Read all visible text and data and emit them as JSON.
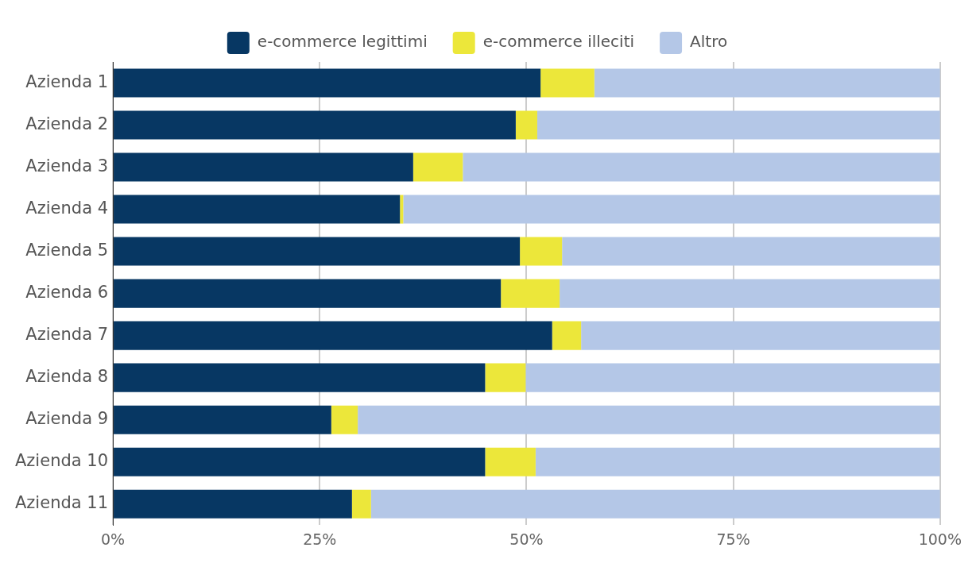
{
  "chart_data": {
    "type": "bar",
    "orientation": "horizontal",
    "stacked": true,
    "categories": [
      "Azienda 1",
      "Azienda 2",
      "Azienda 3",
      "Azienda 4",
      "Azienda 5",
      "Azienda 6",
      "Azienda 7",
      "Azienda 8",
      "Azienda 9",
      "Azienda 10",
      "Azienda 11"
    ],
    "series": [
      {
        "name": "e-commerce legittimi",
        "color": "#073763",
        "values": [
          51.7,
          48.7,
          36.3,
          34.7,
          49.2,
          46.9,
          53.1,
          45.0,
          26.4,
          45.0,
          28.9
        ]
      },
      {
        "name": "e-commerce illeciti",
        "color": "#ece73a",
        "values": [
          6.5,
          2.6,
          6.0,
          0.4,
          5.1,
          7.1,
          3.5,
          4.9,
          3.2,
          6.1,
          2.3
        ]
      },
      {
        "name": "Altro",
        "color": "#b4c7e7",
        "values": [
          41.8,
          48.7,
          57.7,
          64.9,
          45.7,
          46.0,
          43.4,
          50.1,
          70.4,
          48.9,
          68.8
        ]
      }
    ],
    "xlim": [
      0,
      100
    ],
    "xticks": [
      {
        "value": 0,
        "label": "0%"
      },
      {
        "value": 25,
        "label": "25%"
      },
      {
        "value": 50,
        "label": "50%"
      },
      {
        "value": 75,
        "label": "75%"
      },
      {
        "value": 100,
        "label": "100%"
      }
    ],
    "grid": "x",
    "legend": "top"
  }
}
